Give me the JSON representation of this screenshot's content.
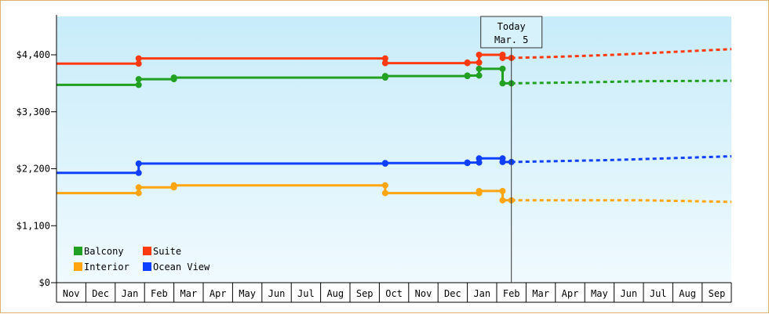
{
  "chart_data": {
    "type": "line",
    "y_ticks": [
      "$0",
      "$1,100",
      "$2,200",
      "$3,300",
      "$4,400"
    ],
    "ylim": [
      0,
      4400
    ],
    "x_ticks": [
      "Nov",
      "Dec",
      "Jan",
      "Feb",
      "Mar",
      "Apr",
      "May",
      "Jun",
      "Jul",
      "Aug",
      "Sep",
      "Oct",
      "Nov",
      "Dec",
      "Jan",
      "Feb",
      "Mar",
      "Apr",
      "May",
      "Jun",
      "Jul",
      "Aug",
      "Sep"
    ],
    "today_label": [
      "Today",
      "Mar. 5"
    ],
    "today_index": 15.5,
    "colors": {
      "Balcony": "#22a022",
      "Suite": "#ff3a10",
      "Interior": "#ffa510",
      "Ocean View": "#1040ff",
      "background_top": "#c8ecfa",
      "background_bottom": "#f0fafe"
    },
    "series": [
      {
        "name": "Balcony",
        "history": [
          [
            0,
            3820
          ],
          [
            2.8,
            3820
          ],
          [
            2.8,
            3930
          ],
          [
            4,
            3930
          ],
          [
            4,
            3960
          ],
          [
            11.2,
            3960
          ],
          [
            11.2,
            3990
          ],
          [
            14,
            3990
          ],
          [
            14,
            4000
          ],
          [
            14.4,
            4000
          ],
          [
            14.4,
            4130
          ],
          [
            15.2,
            4130
          ],
          [
            15.2,
            3850
          ],
          [
            15.5,
            3850
          ]
        ],
        "forecast": [
          [
            15.5,
            3850
          ],
          [
            18,
            3870
          ],
          [
            20,
            3890
          ],
          [
            23,
            3900
          ]
        ]
      },
      {
        "name": "Suite",
        "history": [
          [
            0,
            4230
          ],
          [
            2.8,
            4230
          ],
          [
            2.8,
            4330
          ],
          [
            11.2,
            4330
          ],
          [
            11.2,
            4240
          ],
          [
            14,
            4240
          ],
          [
            14,
            4250
          ],
          [
            14.4,
            4250
          ],
          [
            14.4,
            4400
          ],
          [
            15.2,
            4400
          ],
          [
            15.2,
            4340
          ],
          [
            15.5,
            4340
          ]
        ],
        "forecast": [
          [
            15.5,
            4340
          ],
          [
            17,
            4360
          ],
          [
            19,
            4400
          ],
          [
            23,
            4510
          ]
        ]
      },
      {
        "name": "Interior",
        "history": [
          [
            0,
            1730
          ],
          [
            2.8,
            1730
          ],
          [
            2.8,
            1840
          ],
          [
            4,
            1840
          ],
          [
            4,
            1880
          ],
          [
            11.2,
            1880
          ],
          [
            11.2,
            1730
          ],
          [
            14.4,
            1730
          ],
          [
            14.4,
            1770
          ],
          [
            15.2,
            1770
          ],
          [
            15.2,
            1590
          ],
          [
            15.5,
            1590
          ]
        ],
        "forecast": [
          [
            15.5,
            1590
          ],
          [
            20,
            1590
          ],
          [
            23,
            1560
          ]
        ]
      },
      {
        "name": "Ocean View",
        "history": [
          [
            0,
            2120
          ],
          [
            2.8,
            2120
          ],
          [
            2.8,
            2300
          ],
          [
            11.2,
            2300
          ],
          [
            11.2,
            2310
          ],
          [
            14,
            2310
          ],
          [
            14,
            2320
          ],
          [
            14.4,
            2320
          ],
          [
            14.4,
            2400
          ],
          [
            15.2,
            2400
          ],
          [
            15.2,
            2330
          ],
          [
            15.5,
            2330
          ]
        ],
        "forecast": [
          [
            15.5,
            2330
          ],
          [
            19,
            2370
          ],
          [
            23,
            2440
          ]
        ]
      }
    ],
    "legend": [
      "Balcony",
      "Suite",
      "Interior",
      "Ocean View"
    ],
    "legend_placement": "bottom-left",
    "grid": false
  }
}
